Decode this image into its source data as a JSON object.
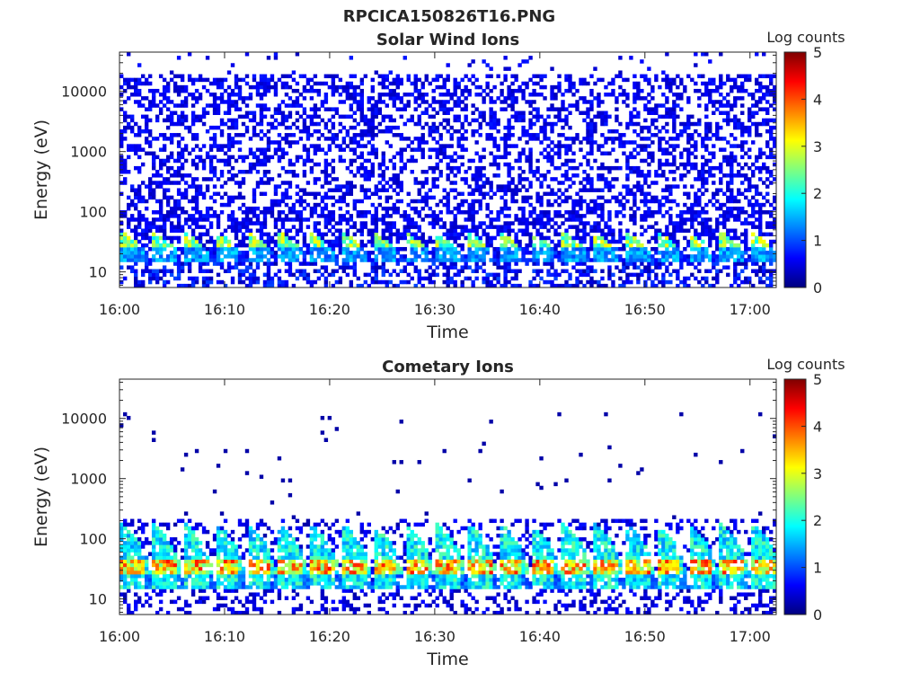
{
  "figure": {
    "title": "RPCICA150826T16.PNG"
  },
  "colormap": {
    "name": "jet",
    "stops": [
      "#00007f",
      "#0000ff",
      "#007fff",
      "#00ffff",
      "#7fff7f",
      "#ffff00",
      "#ff7f00",
      "#ff0000",
      "#7f0000"
    ]
  },
  "chart_data": [
    {
      "type": "heatmap",
      "title": "Solar Wind Ions",
      "xlabel": "Time",
      "ylabel": "Energy (eV)",
      "x_tick_labels": [
        "16:00",
        "16:10",
        "16:20",
        "16:30",
        "16:40",
        "16:50",
        "17:00"
      ],
      "y_tick_labels": [
        "10",
        "100",
        "1000",
        "10000"
      ],
      "y_tick_values": [
        10,
        100,
        1000,
        10000
      ],
      "y_scale": "log",
      "ylim": [
        5.5,
        45000
      ],
      "xlim_minutes": [
        0,
        62.5
      ],
      "colorbar": {
        "label": "Log counts",
        "range": [
          0,
          5
        ],
        "tick_labels": [
          "0",
          "1",
          "2",
          "3",
          "4",
          "5"
        ]
      },
      "grid": false,
      "ion_band_energy_range_eV": [
        15,
        60
      ],
      "ion_band_peak_log_counts": 3.2,
      "background_log_counts": 0.3,
      "background_coverage": "dense, 10 eV to 20000 eV"
    },
    {
      "type": "heatmap",
      "title": "Cometary Ions",
      "xlabel": "Time",
      "ylabel": "Energy (eV)",
      "x_tick_labels": [
        "16:00",
        "16:10",
        "16:20",
        "16:30",
        "16:40",
        "16:50",
        "17:00"
      ],
      "y_tick_labels": [
        "10",
        "100",
        "1000",
        "10000"
      ],
      "y_tick_values": [
        10,
        100,
        1000,
        10000
      ],
      "y_scale": "log",
      "ylim": [
        5.5,
        45000
      ],
      "xlim_minutes": [
        0,
        62.5
      ],
      "colorbar": {
        "label": "Log counts",
        "range": [
          0,
          5
        ],
        "tick_labels": [
          "0",
          "1",
          "2",
          "3",
          "4",
          "5"
        ]
      },
      "grid": false,
      "ion_band_energy_range_eV": [
        15,
        200
      ],
      "ion_band_peak_log_counts": 4.3,
      "background_log_counts": 0.2,
      "background_coverage": "sparse, 100 eV to 10000 eV"
    }
  ]
}
